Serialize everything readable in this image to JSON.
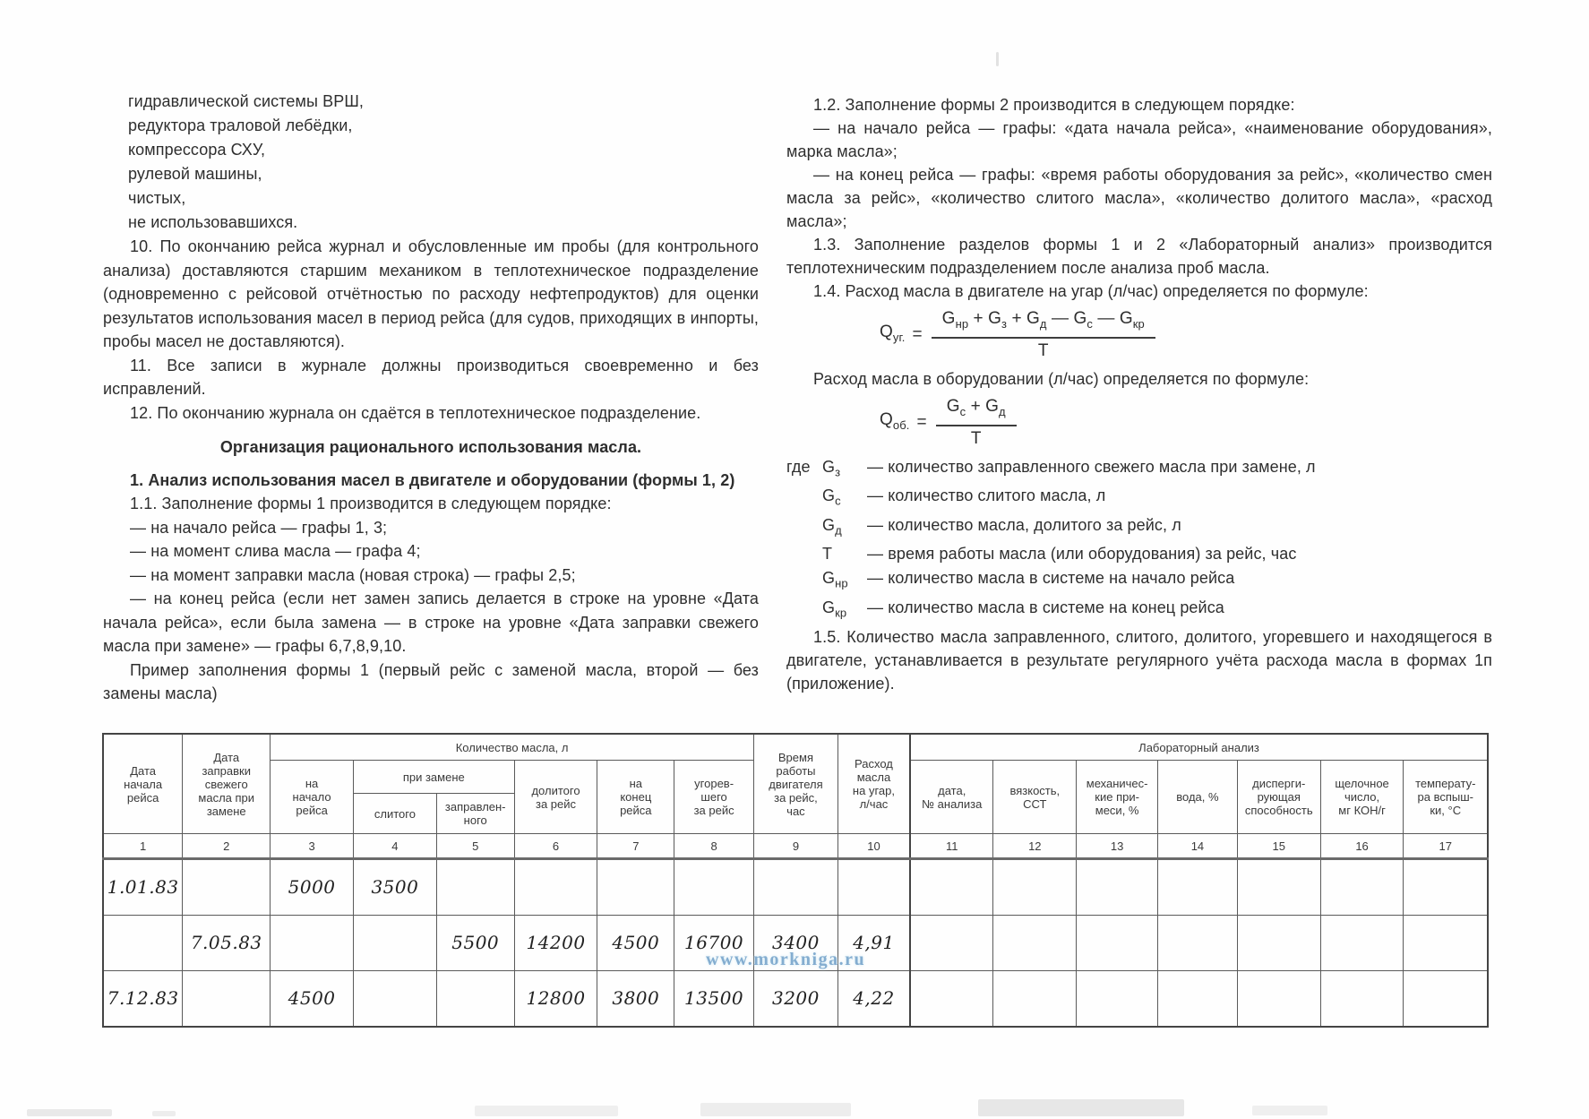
{
  "page": {
    "watermark": "www.morkniga.ru"
  },
  "left_column": {
    "list_items": [
      "гидравлической системы ВРШ,",
      "редуктора траловой лебёдки,",
      "компрессора СХУ,",
      "рулевой машины,",
      "чистых,",
      "не использовавшихся."
    ],
    "para_10": "10. По окончанию рейса журнал и обусловленные им пробы (для контрольного анализа) доставляются старшим механиком в теплотехническое подразделение (одновременно с рейсовой отчётностью по расходу нефтепродуктов) для оценки результатов использования масел в период рейса (для судов, приходящих в инпорты, пробы масел не доставляются).",
    "para_11": "11. Все записи в журнале должны производиться своевременно и без исправлений.",
    "para_12": "12. По окончанию журнала он сдаётся в теплотехническое подразделение.",
    "heading": "Организация рационального использования масла.",
    "para_1": "1. Анализ использования масел в двигателе и оборудовании (формы 1, 2)",
    "para_1_1": "1.1. Заполнение формы 1 производится в следующем порядке:",
    "dash_items": [
      "— на начало рейса — графы 1, 3;",
      "— на момент слива масла — графа 4;",
      "— на момент заправки масла (новая строка) — графы 2,5;",
      "— на конец рейса (если нет замен запись делается в строке на уровне «Дата начала рейса», если была замена — в строке на уровне «Дата заправки свежего масла при замене» — графы 6,7,8,9,10."
    ],
    "para_example": "Пример заполнения формы 1 (первый рейс с заменой масла, второй — без замены масла)"
  },
  "right_column": {
    "para_1_2": "1.2. Заполнение формы 2 производится в следующем порядке:",
    "dash_item_start": "— на начало рейса — графы: «дата начала рейса», «наименование оборудования», марка масла»;",
    "dash_item_end": "— на конец рейса — графы: «время работы оборудования за рейс», «количество смен масла за рейс», «количество слитого масла», «количество долитого масла», «расход масла»;",
    "para_1_3": "1.3. Заполнение разделов формы 1 и 2 «Лабораторный анализ» производится теплотехническим подразделением после анализа проб масла.",
    "para_1_4": "1.4. Расход масла в двигателе на угар (л/час) определяется по формуле:",
    "formula_1": {
      "lhs": "Qуг.",
      "eq": "=",
      "numerator": "Gнр + Gз + Gд — Gс — Gкр",
      "denominator": "Т"
    },
    "para_between": "Расход масла в оборудовании (л/час) определяется по формуле:",
    "formula_2": {
      "lhs": "Qоб.",
      "eq": "=",
      "numerator": "Gс + Gд",
      "denominator": "Т"
    },
    "definitions": [
      {
        "pre": "где",
        "sym": "Gз",
        "text": "— количество заправленного свежего масла при замене, л"
      },
      {
        "pre": "",
        "sym": "Gс",
        "text": "— количество слитого масла, л"
      },
      {
        "pre": "",
        "sym": "Gд",
        "text": "— количество масла, долитого за рейс, л"
      },
      {
        "pre": "",
        "sym": "Т",
        "text": "— время работы масла (или оборудования) за рейс, час"
      },
      {
        "pre": "",
        "sym": "Gнр",
        "text": "— количество масла в системе на начало рейса"
      },
      {
        "pre": "",
        "sym": "Gкр",
        "text": "— количество масла в системе на конец рейса"
      }
    ],
    "para_1_5": "1.5. Количество масла заправленного, слитого, долитого, угоревшего и находящегося в двигателе, устанавливается в результате регулярного учёта расхода масла в формах 1п (приложение)."
  },
  "table": {
    "group_quantity": "Количество масла, л",
    "group_lab": "Лабораторный анализ",
    "group_replace": "при замене",
    "headers": {
      "c1": "Дата\nначала\nрейса",
      "c2": "Дата\nзаправки\nсвежего\nмасла при\nзамене",
      "c3": "на\nначало\nрейса",
      "c4": "слитого",
      "c5": "заправлен-\nного",
      "c6": "долитого\nза рейс",
      "c7": "на\nконец\nрейса",
      "c8": "угорев-\nшего\nза рейс",
      "c9": "Время\nработы\nдвигателя\nза рейс,\nчас",
      "c10": "Расход\nмасла\nна угар,\nл/час",
      "c11": "дата,\n№ анализа",
      "c12": "вязкость,\nССТ",
      "c13": "механичес-\nкие при-\nмеси, %",
      "c14": "вода, %",
      "c15": "дисперги-\nрующая\nспособность",
      "c16": "щелочное\nчисло,\nмг КОН/г",
      "c17": "температу-\nра вспыш-\nки, °С"
    },
    "numbers": [
      "1",
      "2",
      "3",
      "4",
      "5",
      "6",
      "7",
      "8",
      "9",
      "10",
      "11",
      "12",
      "13",
      "14",
      "15",
      "16",
      "17"
    ],
    "rows": [
      [
        "1.01.83",
        "",
        "5000",
        "3500",
        "",
        "",
        "",
        "",
        "",
        "",
        "",
        "",
        "",
        "",
        "",
        "",
        ""
      ],
      [
        "",
        "7.05.83",
        "",
        "",
        "5500",
        "14200",
        "4500",
        "16700",
        "3400",
        "4,91",
        "",
        "",
        "",
        "",
        "",
        "",
        ""
      ],
      [
        "7.12.83",
        "",
        "4500",
        "",
        "",
        "12800",
        "3800",
        "13500",
        "3200",
        "4,22",
        "",
        "",
        "",
        "",
        "",
        "",
        ""
      ]
    ]
  }
}
